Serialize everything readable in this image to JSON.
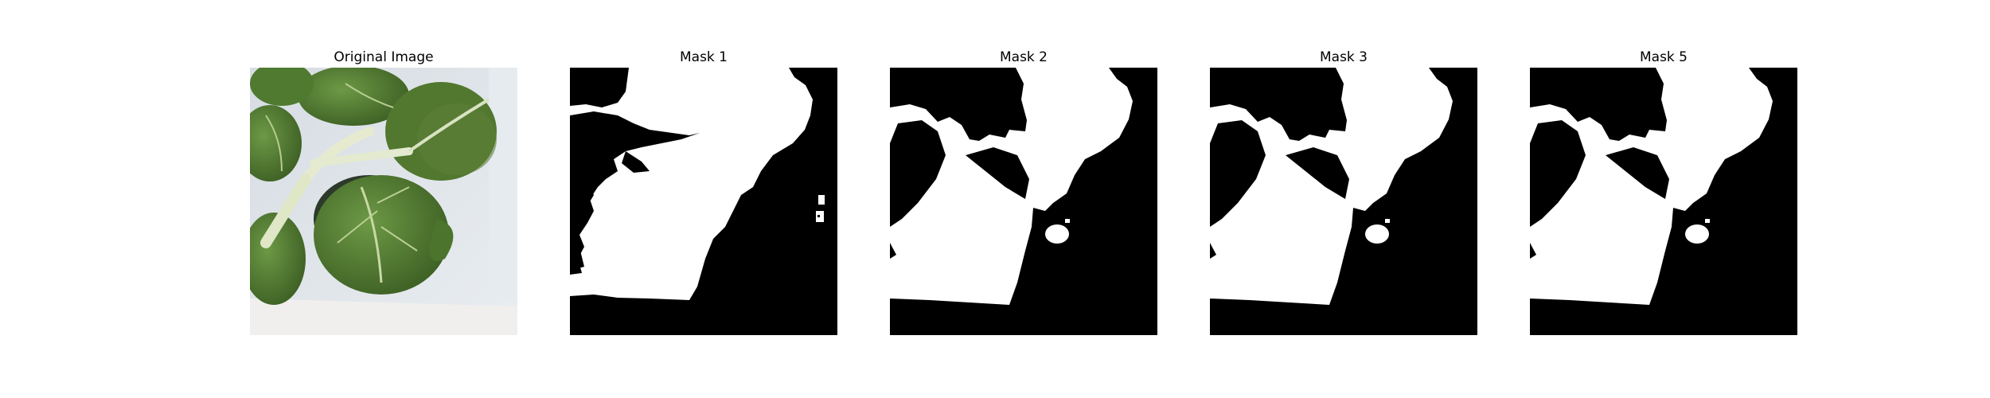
{
  "figure": {
    "panels": [
      {
        "title": "Original Image",
        "kind": "photo",
        "subject": "green leafy plant (bok choy) in white container"
      },
      {
        "title": "Mask 1",
        "kind": "mask"
      },
      {
        "title": "Mask 2",
        "kind": "mask"
      },
      {
        "title": "Mask 3",
        "kind": "mask"
      },
      {
        "title": "Mask 5",
        "kind": "mask"
      }
    ],
    "colors": {
      "mask_foreground": "#ffffff",
      "mask_background": "#000000",
      "leaf_dark": "#3f6326",
      "leaf_mid": "#5a8a3a",
      "leaf_light": "#86a85a",
      "stem": "#e7ecd3",
      "background_wall": "#dfe4ea",
      "container": "#f2f0ee"
    }
  }
}
